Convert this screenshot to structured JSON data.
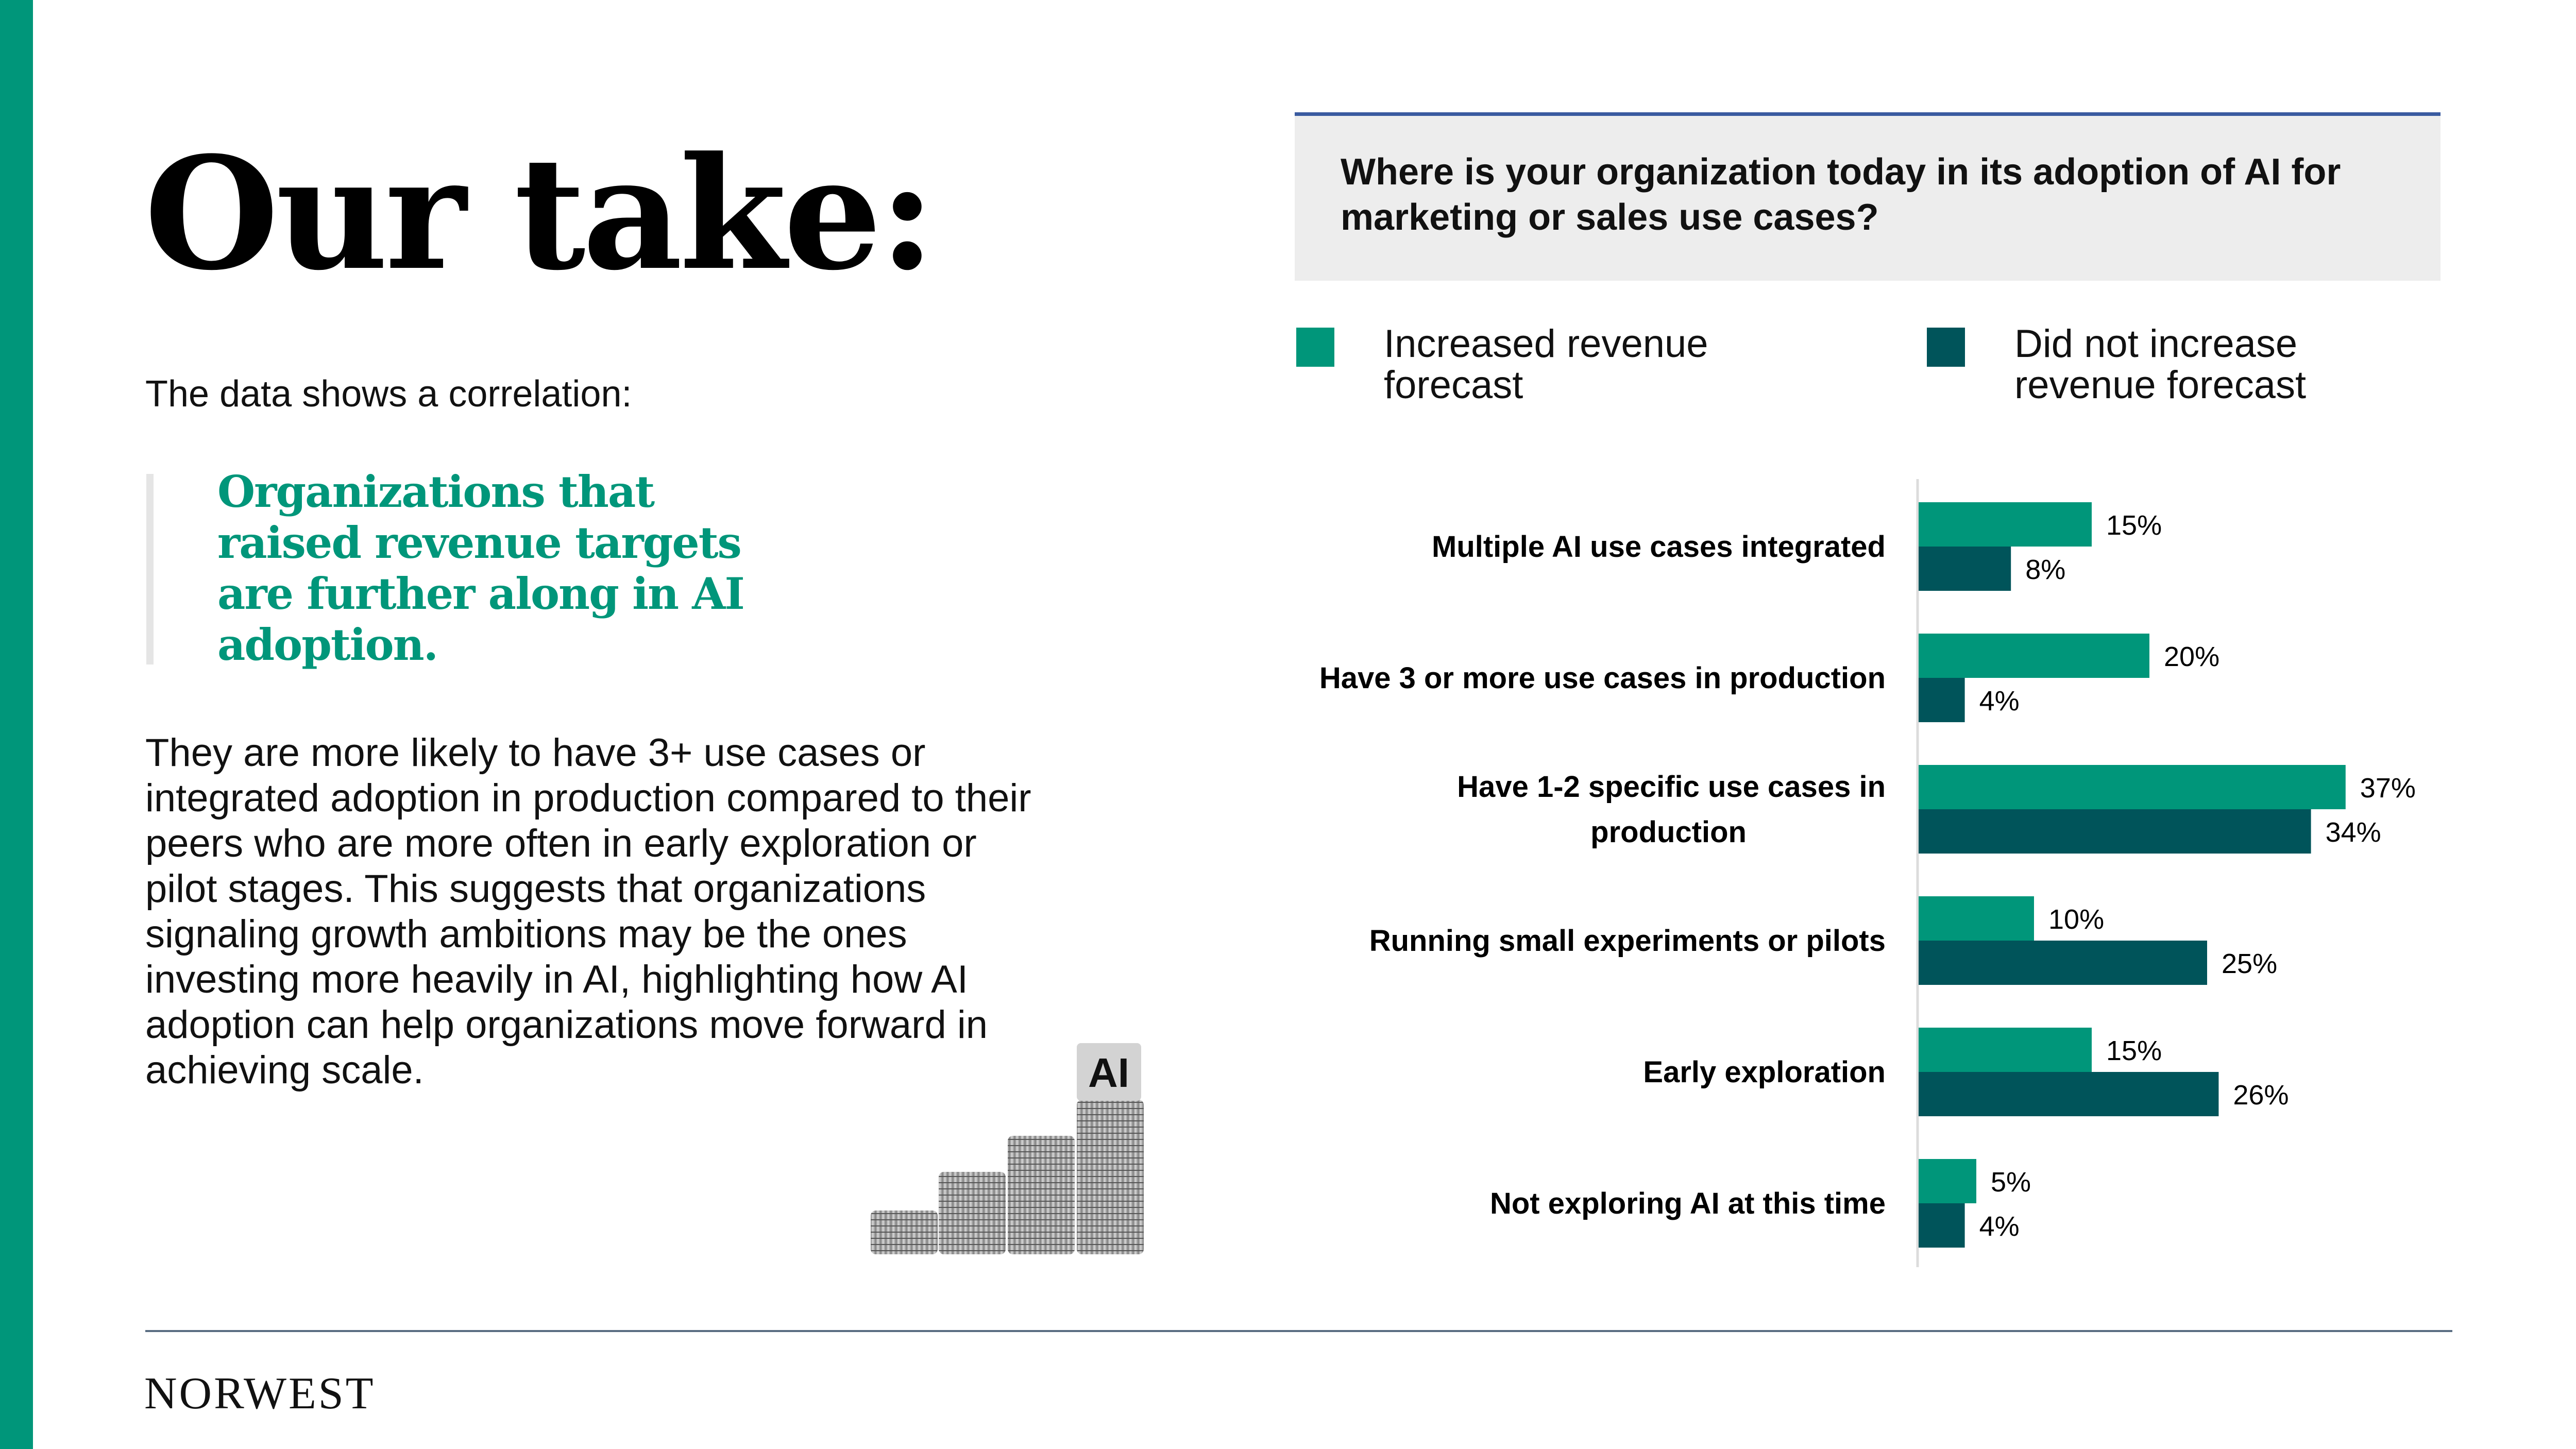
{
  "slide": {
    "title": "Our take:",
    "intro": "The data shows a correlation:",
    "quote": "Organizations that raised revenue targets are further along in AI adoption.",
    "paragraph": "They are more likely to have 3+ use cases or integrated adoption in production compared to their peers who are more often in early exploration or pilot stages. This suggests that organizations signaling growth ambitions may be the ones investing more heavily in AI, highlighting how AI adoption can help organizations move forward in achieving scale.",
    "image_label": "AI",
    "logo": "NORWEST"
  },
  "colors": {
    "accent": "#00967A",
    "dark": "#00545A",
    "rule": "#3A5BA0"
  },
  "chart_data": {
    "type": "bar",
    "orientation": "horizontal",
    "title": "Where is your organization today in its adoption of AI for marketing or sales use cases?",
    "categories": [
      "Multiple AI use cases integrated",
      "Have 3 or more use cases in production",
      "Have 1-2 specific use cases in production",
      "Running small experiments or pilots",
      "Early exploration",
      "Not exploring AI at this time"
    ],
    "series": [
      {
        "name": "Increased revenue forecast",
        "color": "#00967A",
        "values": [
          15,
          20,
          37,
          10,
          15,
          5
        ]
      },
      {
        "name": "Did not increase revenue forecast",
        "color": "#00545A",
        "values": [
          8,
          4,
          34,
          25,
          26,
          4
        ]
      }
    ],
    "unit": "%",
    "legend": "top",
    "grid": false
  }
}
